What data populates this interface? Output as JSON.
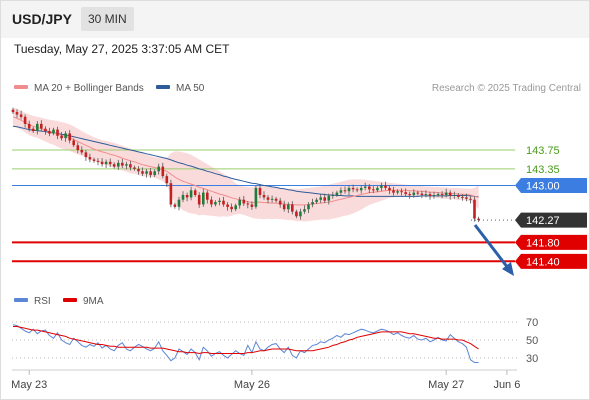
{
  "header": {
    "symbol": "USD/JPY",
    "timeframe": "30 MIN",
    "datetime": "Tuesday, May 27, 2025 3:37:05 AM CET"
  },
  "legend": {
    "ma20": "MA 20 + Bollinger Bands",
    "ma50": "MA 50",
    "rsi": "RSI",
    "ma9": "9MA",
    "ma20_color": "#f08c8c",
    "ma50_color": "#2e5c9a",
    "rsi_color": "#5b86d6",
    "ma9_color": "#e00000"
  },
  "credit": "Research © 2025 Trading Central",
  "colors": {
    "up": "#1e7d3c",
    "down": "#c42020",
    "band": "#f9d5d5",
    "resistance": "#9acd6e",
    "pivot": "#3b7de0",
    "support": "#e00000",
    "current": "#333333",
    "arrow": "#2d5ea8"
  },
  "chart_data": {
    "type": "candlestick",
    "price_ylim": [
      140.9,
      144.7
    ],
    "x_ticks": [
      {
        "label": "May 23",
        "index": 4
      },
      {
        "label": "May 26",
        "index": 59
      },
      {
        "label": "May 27",
        "index": 107
      },
      {
        "label": "Jun 6",
        "index": 122
      }
    ],
    "x_count": 125,
    "levels": [
      {
        "label": "143.75",
        "value": 143.75,
        "kind": "resistance"
      },
      {
        "label": "143.35",
        "value": 143.35,
        "kind": "resistance"
      },
      {
        "label": "143.00",
        "value": 143.0,
        "kind": "pivot"
      },
      {
        "label": "142.27",
        "value": 142.27,
        "kind": "current"
      },
      {
        "label": "141.80",
        "value": 141.8,
        "kind": "support"
      },
      {
        "label": "141.40",
        "value": 141.4,
        "kind": "support"
      }
    ],
    "closes": [
      144.55,
      144.5,
      144.45,
      144.3,
      144.2,
      144.15,
      144.3,
      144.2,
      144.15,
      144.1,
      144.18,
      144.05,
      144.0,
      144.1,
      143.95,
      143.85,
      143.75,
      143.7,
      143.6,
      143.55,
      143.52,
      143.5,
      143.45,
      143.5,
      143.45,
      143.4,
      143.48,
      143.42,
      143.45,
      143.38,
      143.35,
      143.3,
      143.25,
      143.3,
      143.22,
      143.3,
      143.4,
      143.2,
      143.05,
      142.6,
      142.55,
      142.7,
      142.8,
      142.75,
      142.9,
      142.8,
      142.6,
      142.85,
      142.7,
      142.6,
      142.65,
      142.68,
      142.6,
      142.55,
      142.5,
      142.58,
      142.7,
      142.62,
      142.6,
      142.55,
      142.95,
      142.8,
      142.75,
      142.7,
      142.72,
      142.68,
      142.6,
      142.5,
      142.6,
      142.45,
      142.35,
      142.45,
      142.5,
      142.6,
      142.65,
      142.7,
      142.75,
      142.68,
      142.78,
      142.8,
      142.85,
      142.9,
      142.88,
      142.95,
      142.92,
      142.9,
      142.95,
      142.98,
      142.92,
      142.9,
      142.95,
      143.0,
      142.95,
      142.9,
      142.85,
      142.88,
      142.86,
      142.82,
      142.8,
      142.85,
      142.83,
      142.8,
      142.82,
      142.78,
      142.8,
      142.82,
      142.8,
      142.85,
      142.78,
      142.8,
      142.76,
      142.75,
      142.72,
      142.7,
      142.3,
      142.27
    ],
    "ma20": [
      144.45,
      144.42,
      144.38,
      144.33,
      144.28,
      144.25,
      144.23,
      144.2,
      144.17,
      144.14,
      144.12,
      144.09,
      144.06,
      144.04,
      144.01,
      143.97,
      143.93,
      143.89,
      143.85,
      143.81,
      143.77,
      143.74,
      143.71,
      143.69,
      143.66,
      143.64,
      143.61,
      143.58,
      143.55,
      143.52,
      143.5,
      143.47,
      143.44,
      143.42,
      143.4,
      143.38,
      143.36,
      143.33,
      143.3,
      143.24,
      143.18,
      143.13,
      143.09,
      143.06,
      143.03,
      143.0,
      142.96,
      142.94,
      142.91,
      142.88,
      142.85,
      142.82,
      142.8,
      142.77,
      142.74,
      142.72,
      142.7,
      142.68,
      142.66,
      142.64,
      142.65,
      142.65,
      142.64,
      142.64,
      142.63,
      142.63,
      142.62,
      142.61,
      142.6,
      142.6,
      142.59,
      142.59,
      142.59,
      142.6,
      142.61,
      142.62,
      142.63,
      142.64,
      142.65,
      142.67,
      142.69,
      142.71,
      142.73,
      142.75,
      142.77,
      142.79,
      142.81,
      142.83,
      142.85,
      142.86,
      142.87,
      142.88,
      142.89,
      142.9,
      142.9,
      142.9,
      142.9,
      142.9,
      142.89,
      142.89,
      142.88,
      142.88,
      142.87,
      142.86,
      142.86,
      142.85,
      142.84,
      142.84,
      142.83,
      142.83,
      142.82,
      142.82,
      142.81,
      142.8,
      142.77,
      142.75
    ],
    "ma50": [
      144.25,
      144.24,
      144.22,
      144.2,
      144.18,
      144.17,
      144.16,
      144.15,
      144.14,
      144.12,
      144.11,
      144.1,
      144.08,
      144.07,
      144.05,
      144.03,
      144.01,
      143.99,
      143.97,
      143.95,
      143.93,
      143.91,
      143.89,
      143.87,
      143.85,
      143.83,
      143.81,
      143.79,
      143.77,
      143.75,
      143.73,
      143.71,
      143.69,
      143.67,
      143.65,
      143.63,
      143.61,
      143.59,
      143.57,
      143.54,
      143.51,
      143.48,
      143.46,
      143.43,
      143.41,
      143.38,
      143.35,
      143.33,
      143.3,
      143.28,
      143.25,
      143.23,
      143.2,
      143.18,
      143.15,
      143.13,
      143.11,
      143.09,
      143.07,
      143.05,
      143.04,
      143.02,
      143.0,
      142.99,
      142.97,
      142.96,
      142.94,
      142.93,
      142.91,
      142.9,
      142.88,
      142.87,
      142.86,
      142.85,
      142.84,
      142.83,
      142.82,
      142.81,
      142.8,
      142.8,
      142.79,
      142.79,
      142.78,
      142.78,
      142.78,
      142.77,
      142.77,
      142.77,
      142.77,
      142.77,
      142.77,
      142.77,
      142.77,
      142.77,
      142.77,
      142.77,
      142.77,
      142.77,
      142.77,
      142.77,
      142.77,
      142.78,
      142.78,
      142.78,
      142.78,
      142.78,
      142.78,
      142.78,
      142.79,
      142.79,
      142.79,
      142.79,
      142.79,
      142.78,
      142.77,
      142.76
    ],
    "bb_upper": [
      144.65,
      144.62,
      144.58,
      144.54,
      144.5,
      144.47,
      144.45,
      144.43,
      144.41,
      144.39,
      144.38,
      144.36,
      144.34,
      144.32,
      144.29,
      144.25,
      144.2,
      144.15,
      144.1,
      144.06,
      144.02,
      143.99,
      143.96,
      143.94,
      143.92,
      143.9,
      143.87,
      143.84,
      143.81,
      143.78,
      143.75,
      143.72,
      143.68,
      143.65,
      143.62,
      143.6,
      143.59,
      143.57,
      143.58,
      143.68,
      143.72,
      143.72,
      143.7,
      143.68,
      143.65,
      143.6,
      143.55,
      143.5,
      143.45,
      143.4,
      143.35,
      143.3,
      143.25,
      143.2,
      143.12,
      143.05,
      143.0,
      142.98,
      142.97,
      142.96,
      143.0,
      143.0,
      142.99,
      142.98,
      142.97,
      142.96,
      142.95,
      142.94,
      142.93,
      142.93,
      142.93,
      142.93,
      142.94,
      142.95,
      142.96,
      142.97,
      142.98,
      143.0,
      143.02,
      143.04,
      143.06,
      143.08,
      143.1,
      143.12,
      143.13,
      143.13,
      143.13,
      143.12,
      143.11,
      143.1,
      143.09,
      143.08,
      143.07,
      143.06,
      143.05,
      143.04,
      143.03,
      143.02,
      143.01,
      143.0,
      142.99,
      142.99,
      142.98,
      142.98,
      142.97,
      142.97,
      142.96,
      142.96,
      142.95,
      142.95,
      142.95,
      142.94,
      142.94,
      142.93,
      142.95,
      143.0
    ],
    "bb_lower": [
      144.25,
      144.22,
      144.18,
      144.12,
      144.06,
      144.03,
      144.01,
      143.97,
      143.93,
      143.89,
      143.86,
      143.82,
      143.78,
      143.76,
      143.73,
      143.69,
      143.66,
      143.63,
      143.6,
      143.56,
      143.52,
      143.49,
      143.46,
      143.44,
      143.4,
      143.38,
      143.35,
      143.32,
      143.29,
      143.26,
      143.25,
      143.22,
      143.2,
      143.19,
      143.18,
      143.16,
      143.13,
      143.09,
      143.02,
      142.8,
      142.64,
      142.54,
      142.48,
      142.44,
      142.41,
      142.4,
      142.37,
      142.38,
      142.37,
      142.36,
      142.35,
      142.34,
      142.35,
      142.34,
      142.36,
      142.39,
      142.4,
      142.38,
      142.35,
      142.32,
      142.3,
      142.3,
      142.29,
      142.3,
      142.29,
      142.3,
      142.29,
      142.28,
      142.27,
      142.27,
      142.25,
      142.25,
      142.24,
      142.25,
      142.26,
      142.27,
      142.28,
      142.28,
      142.28,
      142.3,
      142.32,
      142.34,
      142.36,
      142.38,
      142.41,
      142.45,
      142.49,
      142.54,
      142.59,
      142.62,
      142.65,
      142.68,
      142.71,
      142.74,
      142.75,
      142.76,
      142.77,
      142.78,
      142.77,
      142.78,
      142.77,
      142.77,
      142.76,
      142.74,
      142.75,
      142.73,
      142.72,
      142.72,
      142.71,
      142.71,
      142.69,
      142.7,
      142.68,
      142.67,
      142.59,
      142.5
    ],
    "rsi_ylim": [
      20,
      80
    ],
    "rsi_ticks": [
      70,
      50,
      30
    ],
    "rsi": [
      67,
      66,
      63,
      60,
      58,
      62,
      57,
      60,
      61,
      55,
      52,
      58,
      50,
      47,
      45,
      52,
      48,
      44,
      42,
      45,
      43,
      47,
      41,
      44,
      40,
      38,
      44,
      47,
      40,
      38,
      42,
      45,
      43,
      40,
      38,
      41,
      48,
      38,
      33,
      27,
      30,
      40,
      37,
      34,
      40,
      36,
      28,
      42,
      38,
      32,
      35,
      37,
      33,
      30,
      34,
      38,
      35,
      33,
      44,
      36,
      48,
      40,
      38,
      42,
      45,
      46,
      40,
      36,
      42,
      33,
      30,
      38,
      36,
      40,
      44,
      45,
      48,
      47,
      50,
      52,
      55,
      53,
      57,
      56,
      58,
      60,
      62,
      61,
      59,
      58,
      60,
      62,
      61,
      59,
      56,
      58,
      55,
      53,
      52,
      55,
      51,
      50,
      52,
      48,
      50,
      53,
      50,
      49,
      56,
      52,
      48,
      46,
      42,
      28,
      25,
      25
    ],
    "rsi_ma9": [
      65,
      65,
      64,
      63,
      62,
      61,
      61,
      60,
      59,
      58,
      57,
      56,
      55,
      54,
      52,
      51,
      50,
      49,
      48,
      47,
      46,
      45,
      45,
      44,
      43,
      43,
      42,
      42,
      42,
      42,
      42,
      42,
      42,
      42,
      41,
      41,
      41,
      41,
      40,
      39,
      38,
      37,
      37,
      36,
      36,
      36,
      35,
      36,
      36,
      35,
      35,
      35,
      35,
      35,
      35,
      35,
      35,
      35,
      36,
      36,
      37,
      38,
      38,
      39,
      40,
      40,
      40,
      40,
      40,
      39,
      38,
      38,
      38,
      38,
      38,
      39,
      40,
      41,
      42,
      44,
      45,
      47,
      48,
      50,
      51,
      53,
      54,
      55,
      56,
      57,
      58,
      59,
      59,
      59,
      59,
      59,
      59,
      58,
      57,
      57,
      56,
      55,
      54,
      53,
      52,
      52,
      51,
      51,
      51,
      51,
      50,
      50,
      48,
      46,
      43,
      40
    ]
  }
}
